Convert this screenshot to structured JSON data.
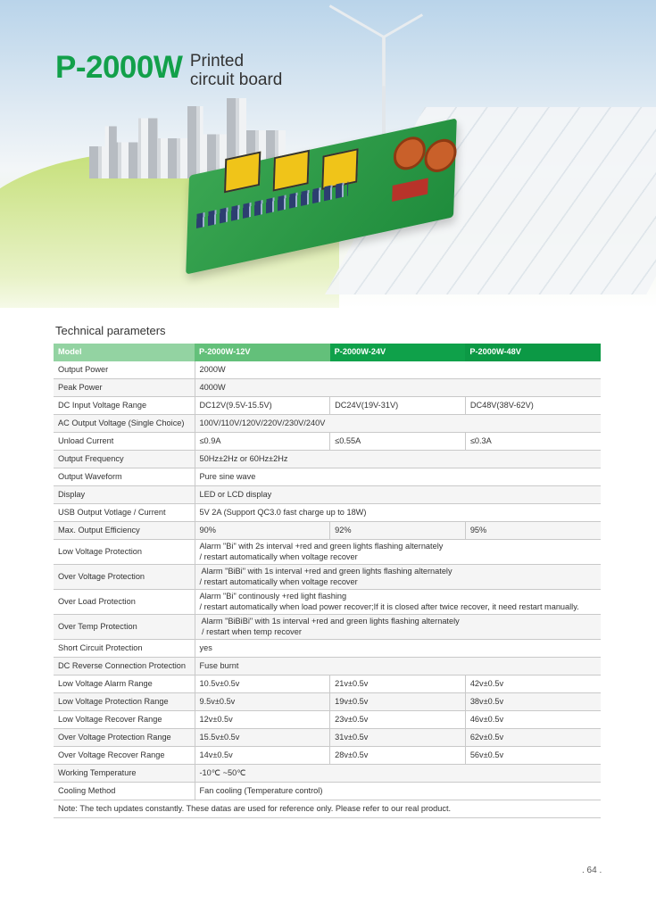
{
  "header": {
    "title": "P-2000W",
    "subtitle_line1": "Printed",
    "subtitle_line2": "circuit board"
  },
  "section_title": "Technical parameters",
  "colors": {
    "accent": "#12a04a",
    "header_model": "#93d3a2",
    "header_12v": "#63c07a",
    "header_24v": "#0fa14a",
    "header_48v": "#0c9945"
  },
  "table": {
    "columns": [
      "Model",
      "P-2000W-12V",
      "P-2000W-24V",
      "P-2000W-48V"
    ],
    "rows": [
      {
        "label": "Output Power",
        "values": [
          "2000W"
        ]
      },
      {
        "label": "Peak Power",
        "values": [
          "4000W"
        ]
      },
      {
        "label": "DC Input Voltage Range",
        "values": [
          "DC12V(9.5V-15.5V)",
          "DC24V(19V-31V)",
          "DC48V(38V-62V)"
        ]
      },
      {
        "label": "AC Output Voltage (Single Choice)",
        "values": [
          "100V/110V/120V/220V/230V/240V"
        ]
      },
      {
        "label": "Unload Current",
        "values": [
          "≤0.9A",
          "≤0.55A",
          "≤0.3A"
        ]
      },
      {
        "label": "Output Frequency",
        "values": [
          "50Hz±2Hz or 60Hz±2Hz"
        ]
      },
      {
        "label": "Output Waveform",
        "values": [
          "Pure sine wave"
        ]
      },
      {
        "label": "Display",
        "values": [
          "LED or LCD display"
        ]
      },
      {
        "label": "USB Output Votlage / Current",
        "values": [
          "5V 2A (Support QC3.0 fast charge up to 18W)"
        ]
      },
      {
        "label": "Max. Output Efficiency",
        "values": [
          "90%",
          "92%",
          "95%"
        ]
      },
      {
        "label": "Low Voltage Protection",
        "values": [
          "Alarm \"Bi\" with 2s interval +red and green lights flashing alternately\n/ restart automatically when voltage recover"
        ]
      },
      {
        "label": "Over Voltage Protection",
        "values": [
          " Alarm \"BiBi\" with 1s interval +red and green lights flashing alternately\n/ restart automatically when voltage recover"
        ]
      },
      {
        "label": "Over Load Protection",
        "values": [
          "Alarm \"Bi\" continously +red light flashing\n/ restart automatically when load power recover;If it is closed after twice recover, it need restart manually."
        ]
      },
      {
        "label": "Over Temp Protection",
        "values": [
          " Alarm \"BiBiBi\" with 1s interval +red and green lights flashing alternately\n / restart when temp recover"
        ]
      },
      {
        "label": "Short Circuit Protection",
        "values": [
          "yes"
        ]
      },
      {
        "label": "DC Reverse Connection Protection",
        "values": [
          "Fuse burnt"
        ]
      },
      {
        "label": "Low Voltage Alarm Range",
        "values": [
          "10.5v±0.5v",
          "21v±0.5v",
          "42v±0.5v"
        ]
      },
      {
        "label": "Low Voltage Protection Range",
        "values": [
          "9.5v±0.5v",
          "19v±0.5v",
          "38v±0.5v"
        ]
      },
      {
        "label": "Low Voltage Recover Range",
        "values": [
          "12v±0.5v",
          "23v±0.5v",
          "46v±0.5v"
        ]
      },
      {
        "label": "Over Voltage Protection Range",
        "values": [
          "15.5v±0.5v",
          "31v±0.5v",
          "62v±0.5v"
        ]
      },
      {
        "label": "Over Voltage Recover Range",
        "values": [
          "14v±0.5v",
          "28v±0.5v",
          "56v±0.5v"
        ]
      },
      {
        "label": "Working Temperature",
        "values": [
          "-10℃ ~50℃"
        ]
      },
      {
        "label": "Cooling Method",
        "values": [
          "Fan cooling (Temperature control)"
        ]
      }
    ],
    "note": "Note: The tech updates constantly. These datas are used for reference only. Please refer to our real product."
  },
  "page_number": ". 64 ."
}
